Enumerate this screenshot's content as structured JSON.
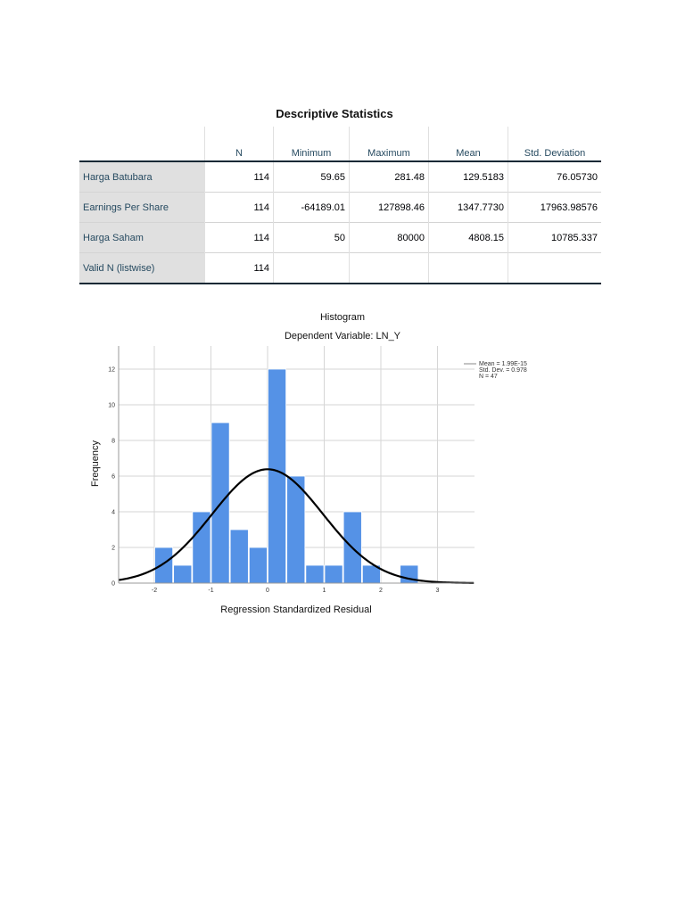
{
  "table": {
    "title": "Descriptive Statistics",
    "columns": [
      "",
      "N",
      "Minimum",
      "Maximum",
      "Mean",
      "Std. Deviation"
    ],
    "rows": [
      {
        "label": "Harga Batubara",
        "n": "114",
        "min": "59.65",
        "max": "281.48",
        "mean": "129.5183",
        "sd": "76.05730"
      },
      {
        "label": "Earnings Per Share",
        "n": "114",
        "min": "-64189.01",
        "max": "127898.46",
        "mean": "1347.7730",
        "sd": "17963.98576"
      },
      {
        "label": "Harga Saham",
        "n": "114",
        "min": "50",
        "max": "80000",
        "mean": "4808.15",
        "sd": "10785.337"
      },
      {
        "label": "Valid N (listwise)",
        "n": "114",
        "min": "",
        "max": "",
        "mean": "",
        "sd": ""
      }
    ]
  },
  "histogram": {
    "title": "Histogram",
    "subtitle": "Dependent Variable: LN_Y",
    "xlabel": "Regression Standardized Residual",
    "ylabel": "Frequency",
    "stats": {
      "mean": "Mean = 1.99E-15",
      "sd": "Std. Dev. = 0.978",
      "n": "N = 47"
    },
    "bar_color": "#5592e6"
  },
  "chart_data": {
    "type": "bar",
    "title": "Histogram",
    "subtitle": "Dependent Variable: LN_Y",
    "xlabel": "Regression Standardized Residual",
    "ylabel": "Frequency",
    "bin_edges": [
      -2.0,
      -1.667,
      -1.333,
      -1.0,
      -0.667,
      -0.333,
      0.0,
      0.333,
      0.667,
      1.0,
      1.333,
      1.667,
      2.0,
      2.333,
      2.667
    ],
    "values": [
      2,
      1,
      4,
      9,
      3,
      2,
      12,
      6,
      1,
      1,
      4,
      1,
      0,
      1
    ],
    "x_ticks": [
      "-2",
      "-1",
      "0",
      "1",
      "2",
      "3"
    ],
    "y_ticks": [
      "0",
      "2",
      "4",
      "6",
      "8",
      "10",
      "12"
    ],
    "ylim": [
      0,
      13.3
    ],
    "xlim": [
      -2.65,
      3.65
    ],
    "grid": true,
    "overlay": {
      "type": "normal_curve",
      "mean": 1.99e-15,
      "sd": 0.978,
      "n": 47,
      "bin_width": 0.333
    },
    "legend": [
      "Mean = 1.99E-15",
      "Std. Dev. = 0.978",
      "N = 47"
    ],
    "legend_position": "top-right outside"
  }
}
